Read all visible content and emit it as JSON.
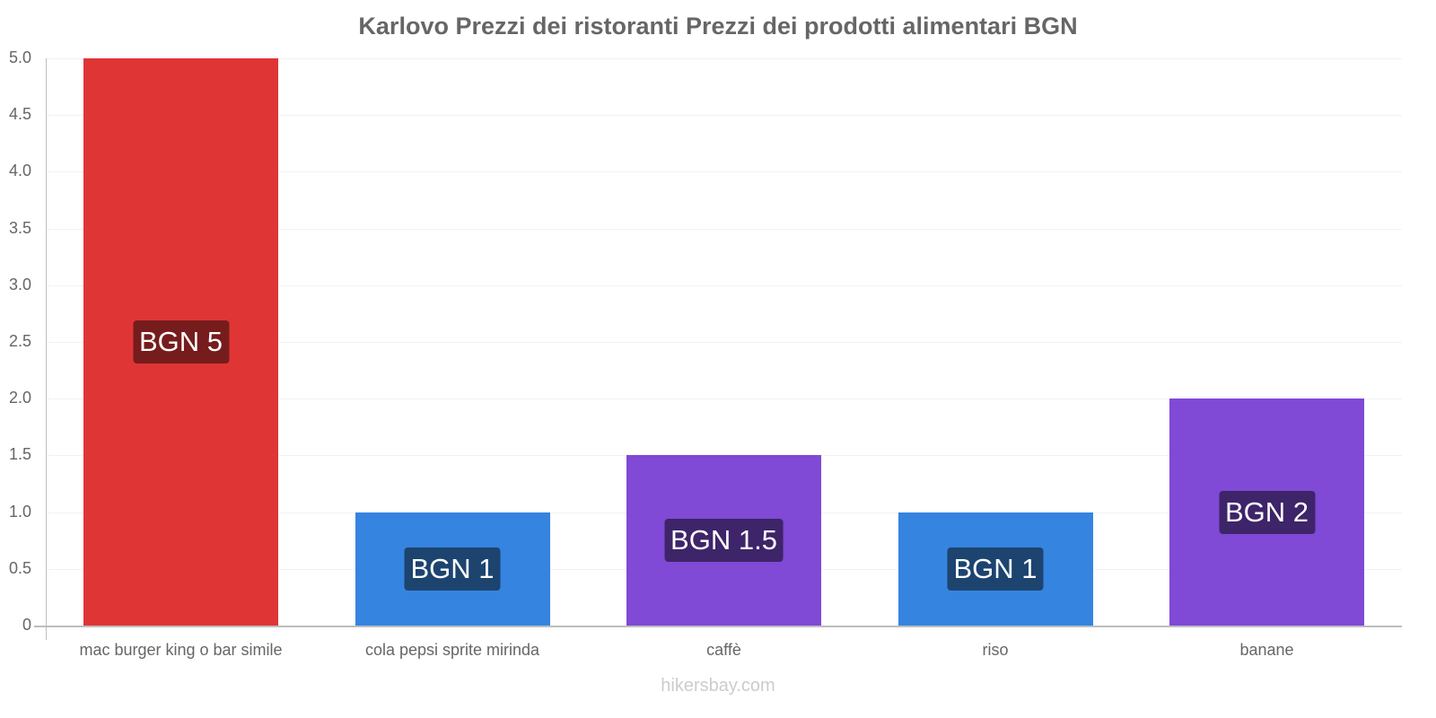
{
  "chart_data": {
    "type": "bar",
    "title": "Karlovo Prezzi dei ristoranti Prezzi dei prodotti alimentari BGN",
    "xlabel": "",
    "ylabel": "",
    "ylim": [
      0,
      5
    ],
    "yticks": [
      "0",
      "0.5",
      "1.0",
      "1.5",
      "2.0",
      "2.5",
      "3.0",
      "3.5",
      "4.0",
      "4.5",
      "5.0"
    ],
    "categories": [
      "mac burger king o bar simile",
      "cola pepsi sprite mirinda",
      "caffè",
      "riso",
      "banane"
    ],
    "values": [
      5,
      1,
      1.5,
      1,
      2
    ],
    "data_labels": [
      "BGN 5",
      "BGN 1",
      "BGN 1.5",
      "BGN 1",
      "BGN 2"
    ],
    "bar_colors": [
      "#e03535",
      "#3584e0",
      "#8049d6",
      "#3584e0",
      "#8049d6"
    ],
    "label_colors": [
      "#761c1c",
      "#1c446f",
      "#3e2469",
      "#1c446f",
      "#3e2469"
    ],
    "grid": true,
    "legend": null
  },
  "footer": "hikersbay.com"
}
